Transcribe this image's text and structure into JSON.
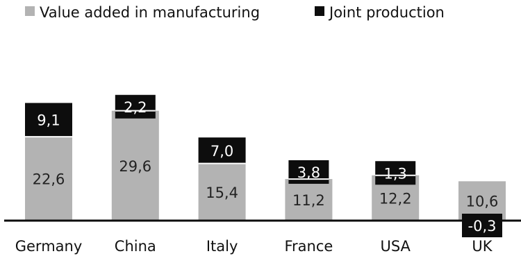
{
  "chart_data": {
    "type": "bar",
    "stacked": true,
    "categories": [
      "Germany",
      "China",
      "Italy",
      "France",
      "USA",
      "UK"
    ],
    "series": [
      {
        "name": "Value added in manufacturing",
        "color": "#b3b3b3",
        "values": [
          22.6,
          29.6,
          15.4,
          11.2,
          12.2,
          10.6
        ],
        "labels": [
          "22,6",
          "29,6",
          "15,4",
          "11,2",
          "12,2",
          "10,6"
        ]
      },
      {
        "name": "Joint production",
        "color": "#0d0d0d",
        "values": [
          9.1,
          2.2,
          7.0,
          3.8,
          1.3,
          -0.3
        ],
        "labels": [
          "9,1",
          "2,2",
          "7,0",
          "3,8",
          "1,3",
          "-0,3"
        ]
      }
    ],
    "legend_position": "top",
    "grid": false,
    "y_axis_visible": false,
    "title": "",
    "xlabel": "",
    "ylabel": ""
  }
}
